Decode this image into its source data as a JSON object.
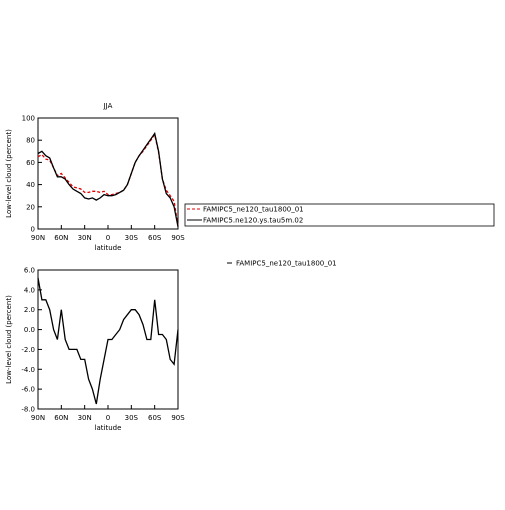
{
  "chart_data": [
    {
      "type": "line",
      "title": "JJA",
      "ylabel": "Low-level cloud (percent)",
      "xlabel": "latitude",
      "x": [
        90,
        85,
        80,
        75,
        70,
        65,
        60,
        55,
        50,
        45,
        40,
        35,
        30,
        25,
        20,
        15,
        10,
        5,
        0,
        -5,
        -10,
        -15,
        -20,
        -25,
        -30,
        -35,
        -40,
        -45,
        -50,
        -55,
        -60,
        -65,
        -70,
        -75,
        -80,
        -85,
        -90
      ],
      "xlim": [
        90,
        -90
      ],
      "xticks": [
        {
          "value": 90,
          "label": "90N"
        },
        {
          "value": 60,
          "label": "60N"
        },
        {
          "value": 30,
          "label": "30N"
        },
        0,
        {
          "value": -30,
          "label": "30S"
        },
        {
          "value": -60,
          "label": "60S"
        },
        {
          "value": -90,
          "label": "90S"
        }
      ],
      "ylim": [
        0,
        100
      ],
      "yticks": [
        0,
        20,
        40,
        60,
        80,
        100
      ],
      "series": [
        {
          "name": "FAMIPC5_ne120_tau1800_01",
          "color": "#e00000",
          "dash": true,
          "values": [
            65,
            67,
            63,
            62,
            55,
            48,
            50,
            46,
            42,
            38,
            37,
            36,
            33,
            33,
            34,
            34,
            33,
            34,
            31,
            31,
            32,
            33,
            35,
            40,
            50,
            60,
            66,
            70,
            75,
            80,
            85,
            69,
            45,
            35,
            30,
            25,
            3
          ]
        },
        {
          "name": "FAMIPC5.ne120.ys.tau5m.02",
          "color": "#000000",
          "dash": false,
          "values": [
            68,
            70,
            66,
            64,
            55,
            47,
            47,
            45,
            40,
            36,
            34,
            32,
            28,
            27,
            28,
            26,
            28,
            31,
            30,
            30,
            31,
            33,
            35,
            40,
            50,
            60,
            66,
            71,
            76,
            81,
            86,
            70,
            45,
            32,
            28,
            20,
            2
          ]
        }
      ]
    },
    {
      "type": "line",
      "ylabel": "Low-level cloud (percent)",
      "xlabel": "latitude",
      "x": [
        90,
        85,
        80,
        75,
        70,
        65,
        60,
        55,
        50,
        45,
        40,
        35,
        30,
        25,
        20,
        15,
        10,
        5,
        0,
        -5,
        -10,
        -15,
        -20,
        -25,
        -30,
        -35,
        -40,
        -45,
        -50,
        -55,
        -60,
        -65,
        -70,
        -75,
        -80,
        -85,
        -90
      ],
      "xlim": [
        90,
        -90
      ],
      "xticks": [
        {
          "value": 90,
          "label": "90N"
        },
        {
          "value": 60,
          "label": "60N"
        },
        {
          "value": 30,
          "label": "30N"
        },
        0,
        {
          "value": -30,
          "label": "30S"
        },
        {
          "value": -60,
          "label": "60S"
        },
        {
          "value": -90,
          "label": "90S"
        }
      ],
      "ylim": [
        -8,
        6
      ],
      "yticks": [
        {
          "value": -8,
          "label": "-8.0"
        },
        {
          "value": -6,
          "label": "-6.0"
        },
        {
          "value": -4,
          "label": "-4.0"
        },
        {
          "value": -2,
          "label": "-2.0"
        },
        {
          "value": 0,
          "label": "0.0"
        },
        {
          "value": 2,
          "label": "2.0"
        },
        {
          "value": 4,
          "label": "4.0"
        },
        {
          "value": 6,
          "label": "6.0"
        }
      ],
      "series": [
        {
          "name": "FAMIPC5_ne120_tau1800_01",
          "color": "#000000",
          "dash": false,
          "values": [
            5.2,
            3,
            3,
            2,
            0,
            -1,
            2,
            -1,
            -2,
            -2,
            -2,
            -3,
            -3,
            -5,
            -6,
            -7.5,
            -5,
            -3,
            -1,
            -1,
            -0.5,
            0,
            1,
            1.5,
            2,
            2,
            1.5,
            0.5,
            -1,
            -1,
            3,
            -0.5,
            -0.5,
            -1,
            -3,
            -3.5,
            0
          ]
        }
      ]
    }
  ]
}
